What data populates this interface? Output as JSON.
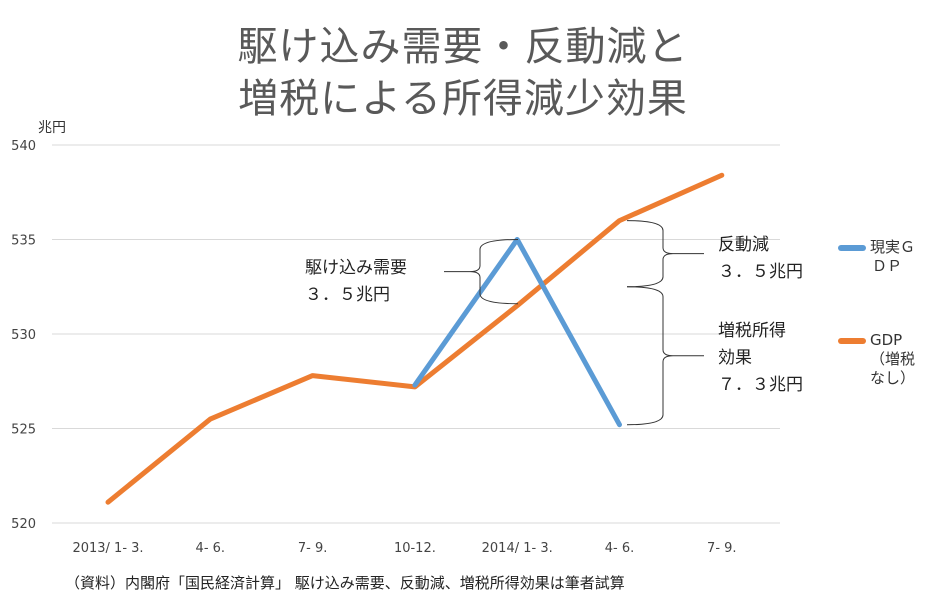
{
  "title": {
    "line1": "駆け込み需要・反動減と",
    "line2": "増税による所得減少効果"
  },
  "chart_data": {
    "type": "line",
    "ylabel": "兆円",
    "ylim": [
      520,
      540
    ],
    "yticks": [
      520,
      525,
      530,
      535,
      540
    ],
    "categories": [
      "2013/ 1- 3.",
      "4- 6.",
      "7- 9.",
      "10-12.",
      "2014/ 1- 3.",
      "4- 6.",
      "7- 9."
    ],
    "grid": true,
    "legend_position": "right",
    "series": [
      {
        "name_lines": [
          "現実Ｇ",
          "ＤＰ"
        ],
        "color": "#5b9bd5",
        "values": [
          null,
          null,
          null,
          527.3,
          535.0,
          525.2,
          null
        ]
      },
      {
        "name_lines": [
          "GDP",
          "（増税",
          "なし）"
        ],
        "color": "#ed7d31",
        "values": [
          521.1,
          525.5,
          527.8,
          527.2,
          531.5,
          536.0,
          538.4
        ]
      }
    ],
    "annotations": {
      "kakekomi": [
        "駆け込み需要",
        "３．５兆円"
      ],
      "handou": [
        "反動減",
        "３．５兆円"
      ],
      "zouzei": [
        "増税所得",
        "効果",
        "７．３兆円"
      ]
    }
  },
  "source_note": "（資料）内閣府「国民経済計算」 駆け込み需要、反動減、増税所得効果は筆者試算"
}
